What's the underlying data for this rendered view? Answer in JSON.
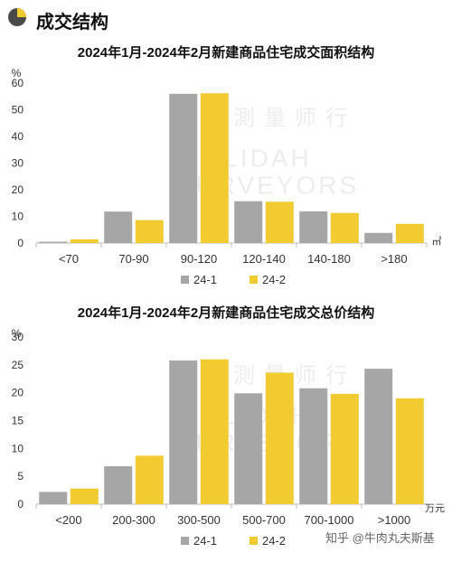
{
  "header": {
    "title": "成交结构",
    "icon": "pie-chart-icon",
    "accent_color": "#F2CB30"
  },
  "colors": {
    "series_24_1": "#A6A6A6",
    "series_24_2": "#F2CB30",
    "axis": "#BFBFBF",
    "text": "#222222"
  },
  "background_watermark_text": [
    "中",
    "測",
    "量",
    "师",
    "行"
  ],
  "background_watermark_latin": [
    "LIDAH",
    "SURVEYORS"
  ],
  "footer": {
    "watermark": "知乎 @牛肉丸夫斯基"
  },
  "chart_data": [
    {
      "type": "bar",
      "title": "2024年1月-2024年2月新建商品住宅成交面积结构",
      "ylabel": "%",
      "xunit": "㎡",
      "categories": [
        "<70",
        "70-90",
        "90-120",
        "120-140",
        "140-180",
        ">180"
      ],
      "yticks": [
        "0",
        "10",
        "20",
        "30",
        "40",
        "50",
        "60"
      ],
      "ylim": [
        0,
        60
      ],
      "grid": false,
      "legend_position": "bottom",
      "series": [
        {
          "name": "24-1",
          "values": [
            0.5,
            11.8,
            56.0,
            15.7,
            11.9,
            3.8
          ]
        },
        {
          "name": "24-2",
          "values": [
            1.4,
            8.6,
            56.2,
            15.5,
            11.3,
            7.2
          ]
        }
      ]
    },
    {
      "type": "bar",
      "title": "2024年1月-2024年2月新建商品住宅成交总价结构",
      "ylabel": "%",
      "xunit": "万元",
      "categories": [
        "<200",
        "200-300",
        "300-500",
        "500-700",
        "700-1000",
        ">1000"
      ],
      "yticks": [
        "0",
        "5",
        "10",
        "15",
        "20",
        "25",
        "30"
      ],
      "ylim": [
        0,
        30
      ],
      "grid": false,
      "legend_position": "bottom",
      "series": [
        {
          "name": "24-1",
          "values": [
            2.2,
            6.8,
            25.8,
            19.9,
            20.8,
            24.3
          ]
        },
        {
          "name": "24-2",
          "values": [
            2.8,
            8.7,
            26.0,
            23.6,
            19.8,
            19.0
          ]
        }
      ]
    }
  ]
}
